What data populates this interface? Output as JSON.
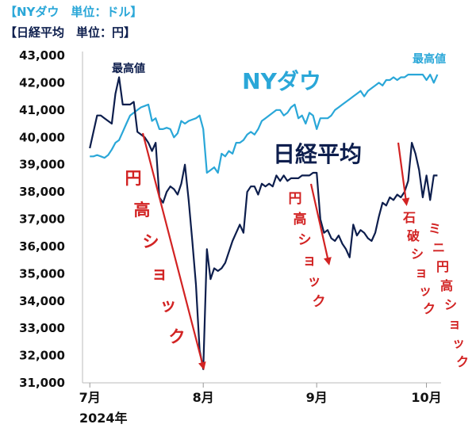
{
  "legend": {
    "dow": "【NYダウ　単位：ドル】",
    "nikkei": "【日経平均　単位：円】"
  },
  "year_label": "2024年",
  "colors": {
    "dow": "#2aa7d8",
    "nikkei": "#0d1e4d",
    "arrow": "#d22323"
  },
  "chart_data": {
    "type": "line",
    "ylim": [
      31000,
      43000
    ],
    "yticks": [
      "31,000",
      "32,000",
      "33,000",
      "34,000",
      "35,000",
      "36,000",
      "37,000",
      "38,000",
      "39,000",
      "40,000",
      "41,000",
      "42,000",
      "43,000"
    ],
    "ytick_values": [
      31000,
      32000,
      33000,
      34000,
      35000,
      36000,
      37000,
      38000,
      39000,
      40000,
      41000,
      42000,
      43000
    ],
    "xticks": [
      {
        "label": "7月",
        "x": 0
      },
      {
        "label": "8月",
        "x": 31
      },
      {
        "label": "9月",
        "x": 62
      },
      {
        "label": "10月",
        "x": 92
      }
    ],
    "xlim": [
      -2,
      96
    ],
    "series": [
      {
        "name": "NYダウ",
        "x": [
          0,
          1,
          2,
          3,
          4,
          5,
          6,
          7,
          8,
          9,
          10,
          11,
          12,
          13,
          14,
          15,
          16,
          17,
          18,
          19,
          20,
          21,
          22,
          23,
          24,
          25,
          26,
          27,
          28,
          29,
          30,
          31,
          32,
          33,
          34,
          35,
          36,
          37,
          38,
          39,
          40,
          41,
          42,
          43,
          44,
          45,
          46,
          47,
          48,
          49,
          50,
          51,
          52,
          53,
          54,
          55,
          56,
          57,
          58,
          59,
          60,
          61,
          62,
          63,
          64,
          65,
          66,
          67,
          68,
          69,
          70,
          71,
          72,
          73,
          74,
          75,
          76,
          77,
          78,
          79,
          80,
          81,
          82,
          83,
          84,
          85,
          86,
          87,
          88,
          89,
          90,
          91,
          92,
          93,
          94,
          95
        ],
        "values": [
          39300,
          39300,
          39350,
          39300,
          39250,
          39350,
          39550,
          39800,
          39900,
          40200,
          40500,
          40800,
          40900,
          41000,
          41100,
          41150,
          41200,
          40600,
          40700,
          40300,
          40300,
          40350,
          40300,
          40000,
          40150,
          40600,
          40500,
          40600,
          40650,
          40700,
          40800,
          40300,
          38700,
          38800,
          38900,
          38700,
          39400,
          39300,
          39500,
          39400,
          39800,
          39800,
          39900,
          40100,
          40200,
          40100,
          40300,
          40600,
          40700,
          40800,
          40900,
          41000,
          41000,
          40800,
          40900,
          41100,
          41200,
          40700,
          40800,
          40500,
          40900,
          40800,
          40300,
          40700,
          40700,
          40700,
          40800,
          41000,
          41100,
          41200,
          41300,
          41400,
          41500,
          41600,
          41700,
          41500,
          41700,
          41800,
          41900,
          42000,
          41900,
          42100,
          42100,
          42200,
          42100,
          42200,
          42200,
          42300,
          42300,
          42300,
          42300,
          42300,
          42100,
          42300,
          42000,
          42300
        ],
        "label": "NYダウ",
        "annotation": "最高値"
      },
      {
        "name": "日経平均",
        "x": [
          0,
          1,
          2,
          3,
          4,
          5,
          6,
          7,
          8,
          9,
          10,
          11,
          12,
          13,
          14,
          15,
          16,
          17,
          18,
          19,
          20,
          21,
          22,
          23,
          24,
          25,
          26,
          27,
          28,
          29,
          30,
          31,
          32,
          33,
          34,
          35,
          36,
          37,
          38,
          39,
          40,
          41,
          42,
          43,
          44,
          45,
          46,
          47,
          48,
          49,
          50,
          51,
          52,
          53,
          54,
          55,
          56,
          57,
          58,
          59,
          60,
          61,
          62,
          63,
          64,
          65,
          66,
          67,
          68,
          69,
          70,
          71,
          72,
          73,
          74,
          75,
          76,
          77,
          78,
          79,
          80,
          81,
          82,
          83,
          84,
          85,
          86,
          87,
          88,
          89,
          90,
          91,
          92,
          93,
          94,
          95
        ],
        "values": [
          39600,
          40200,
          40800,
          40800,
          40700,
          40600,
          40500,
          41600,
          42200,
          41200,
          41200,
          41200,
          41300,
          40200,
          40100,
          40000,
          39800,
          39500,
          39800,
          37800,
          37600,
          38000,
          38200,
          38100,
          37900,
          38300,
          39000,
          37700,
          36200,
          34600,
          32200,
          31500,
          35900,
          34800,
          35200,
          35100,
          35200,
          35400,
          35800,
          36200,
          36500,
          36800,
          36500,
          38000,
          38200,
          38200,
          37900,
          38300,
          38200,
          38300,
          38200,
          38600,
          38400,
          38600,
          38400,
          38500,
          38500,
          38500,
          38600,
          38600,
          38600,
          38700,
          38700,
          37000,
          36500,
          36600,
          36300,
          36200,
          36400,
          36100,
          35900,
          35600,
          36800,
          36400,
          36600,
          36500,
          36300,
          36200,
          36500,
          37100,
          37600,
          37500,
          37800,
          37700,
          37900,
          37800,
          38000,
          38400,
          39800,
          39400,
          38800,
          37800,
          38600,
          37700,
          38600,
          38600
        ],
        "label": "日経平均",
        "annotation": "最高値"
      }
    ],
    "annotations": [
      {
        "text": "円高ショック",
        "from": [
          13,
          40200
        ],
        "to": [
          31,
          31500
        ]
      },
      {
        "text": "円高ショック",
        "from": [
          63,
          38500
        ],
        "to": [
          67,
          35400
        ]
      },
      {
        "text": "石破ショック",
        "from": [
          84,
          39800
        ],
        "to": [
          87,
          38000
        ]
      },
      {
        "text": "ミニ円高ショック",
        "from": [
          0,
          0
        ],
        "to": [
          0,
          0
        ]
      }
    ]
  }
}
